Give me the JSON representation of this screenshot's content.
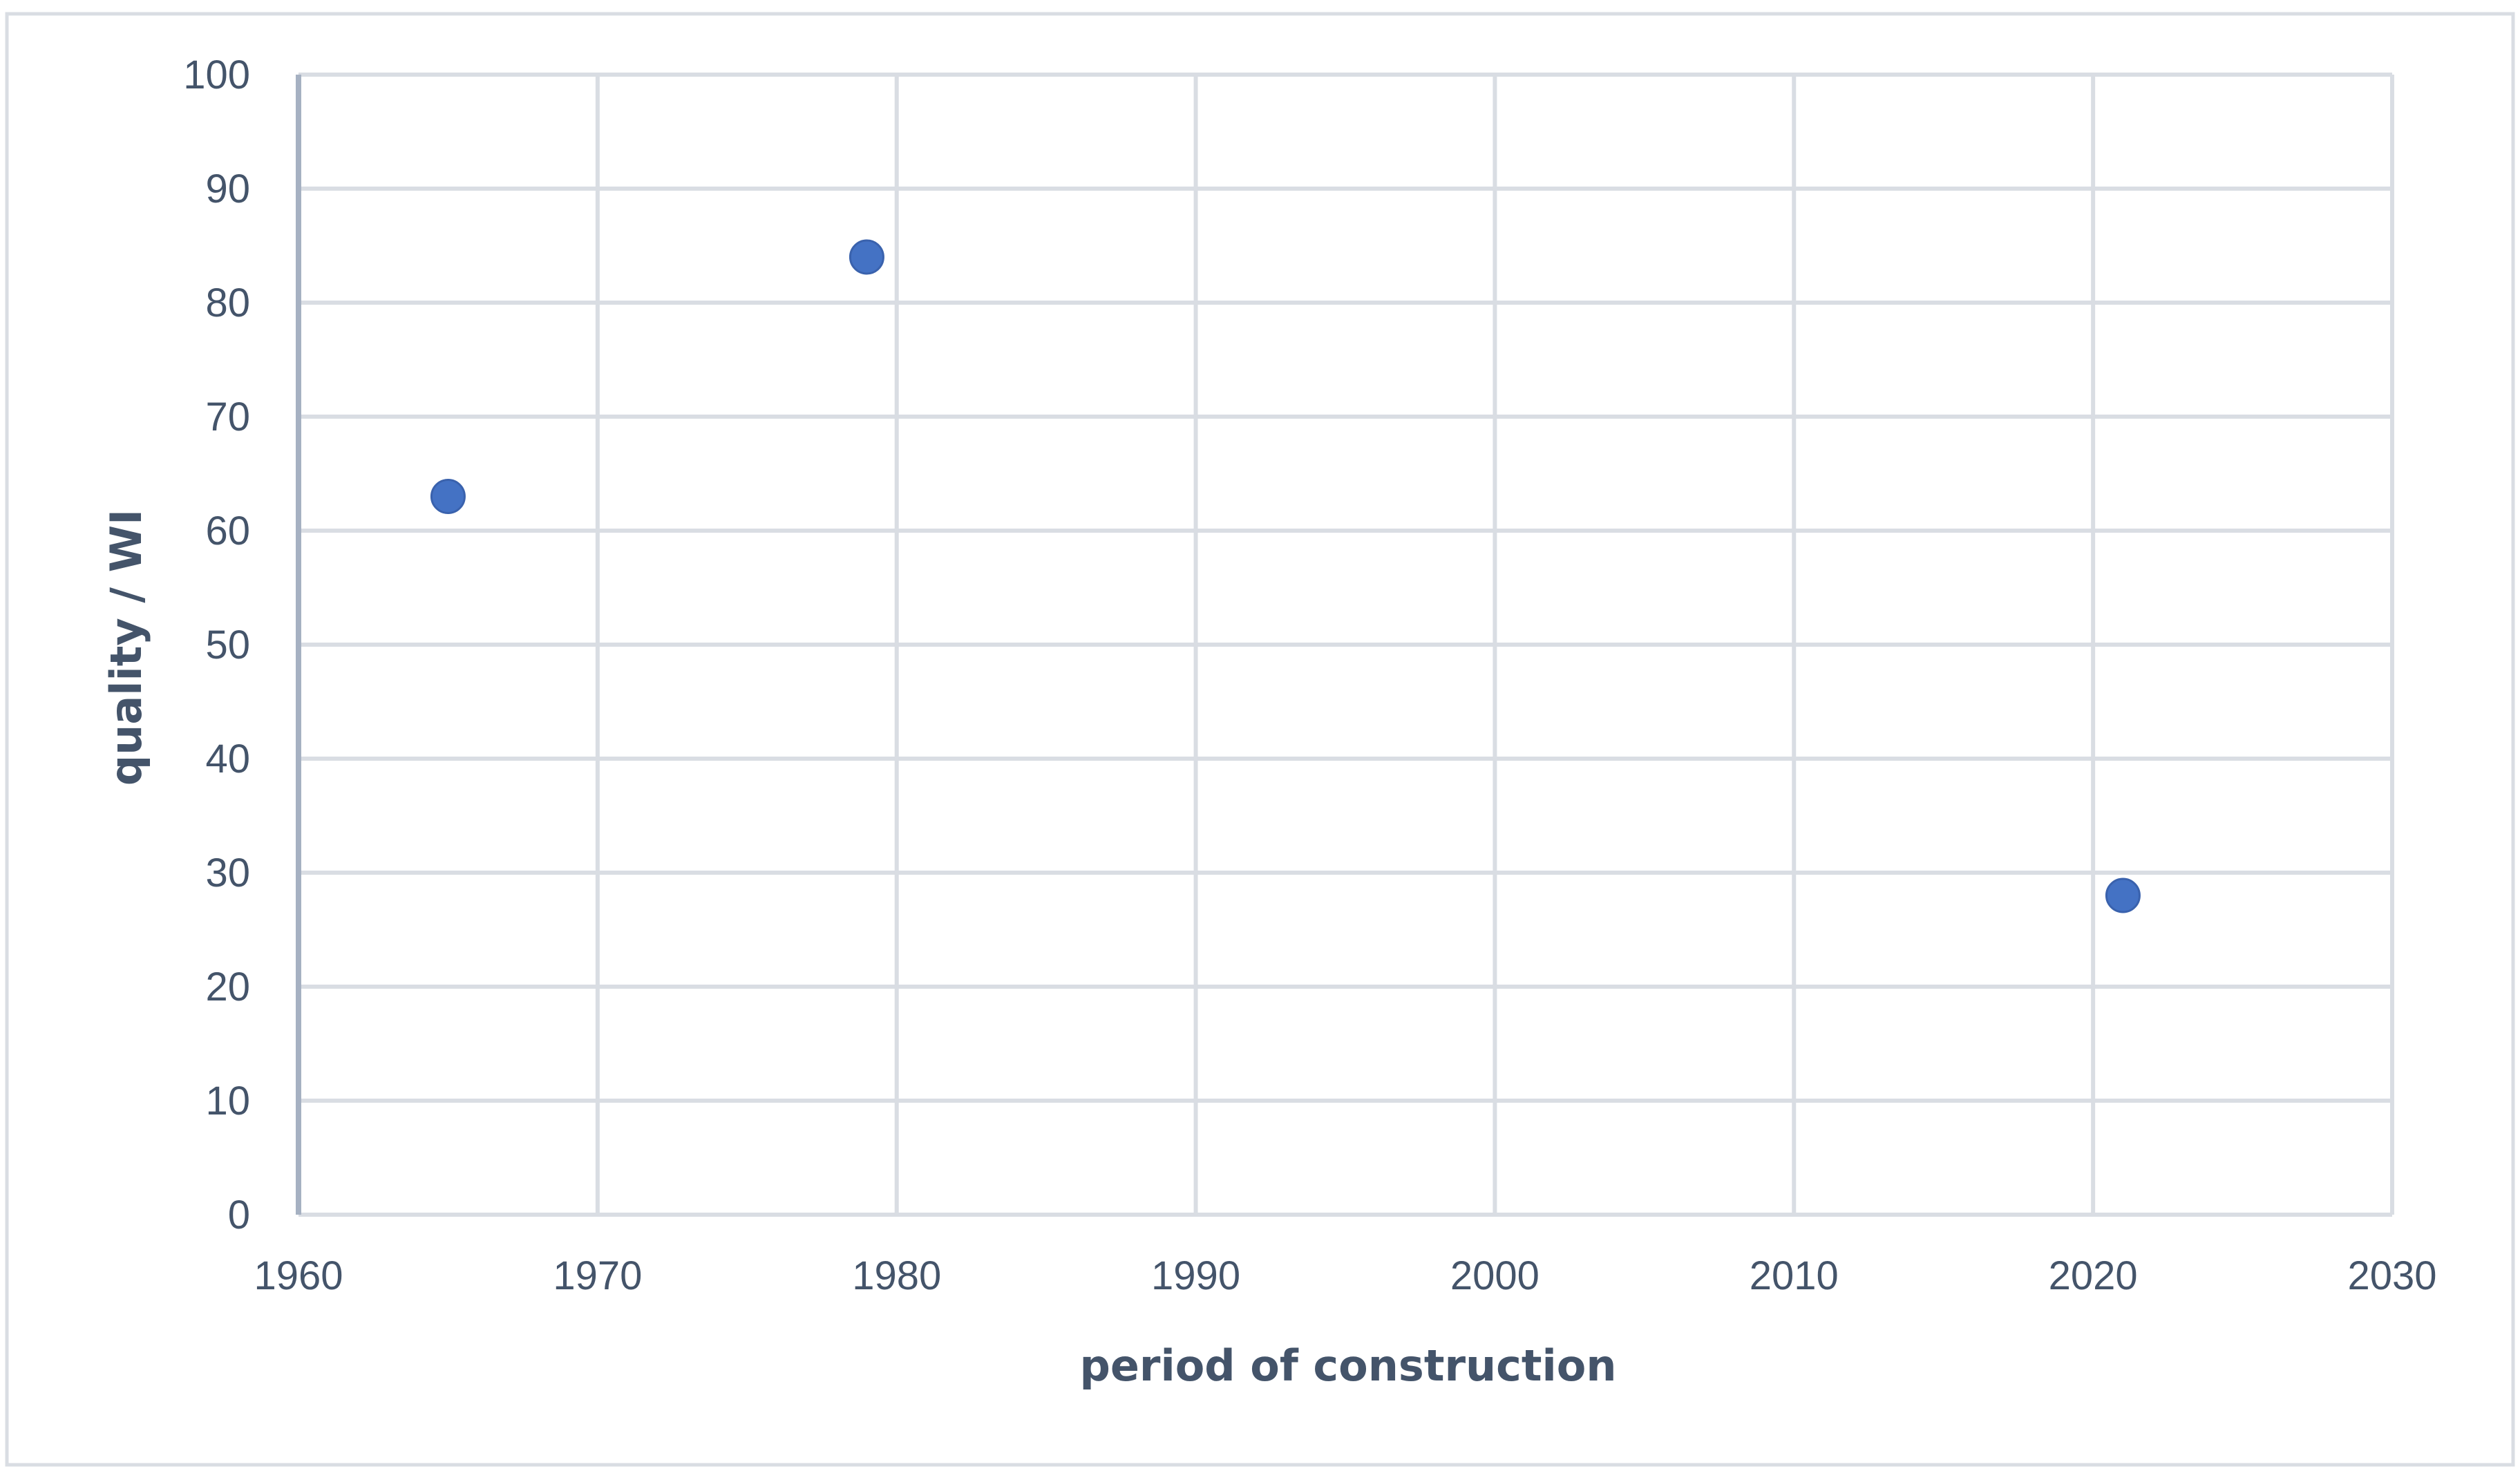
{
  "chart_data": {
    "type": "scatter",
    "title": "",
    "xlabel": "period of construction",
    "ylabel": "quality / WI",
    "xlim": [
      1960,
      2030
    ],
    "ylim": [
      0,
      100
    ],
    "x_ticks": [
      "1960",
      "1970",
      "1980",
      "1990",
      "2000",
      "2010",
      "2020",
      "2030"
    ],
    "y_ticks": [
      "0",
      "10",
      "20",
      "30",
      "40",
      "50",
      "60",
      "70",
      "80",
      "90",
      "100"
    ],
    "grid": true,
    "legend": "none",
    "series": [
      {
        "color": "#4472c4",
        "points": [
          {
            "x": 1965,
            "y": 63
          },
          {
            "x": 1979,
            "y": 84
          },
          {
            "x": 2021,
            "y": 28
          }
        ]
      }
    ]
  }
}
